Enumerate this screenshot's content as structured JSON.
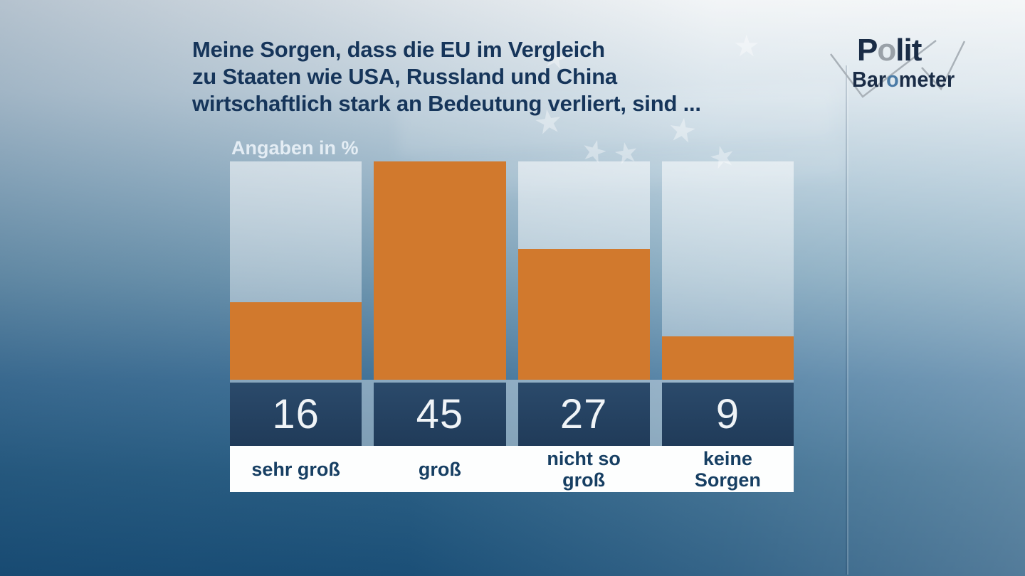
{
  "title": {
    "line1": "Meine Sorgen, dass die EU im Vergleich",
    "line2": "zu Staaten wie USA, Russland und China",
    "line3": "wirtschaftlich stark an Bedeutung verliert, sind ..."
  },
  "logo": {
    "polit": {
      "p1": "P",
      "o": "o",
      "p2": "lit"
    },
    "barometer": {
      "p1": "Bar",
      "o": "o",
      "p2": "meter"
    }
  },
  "chart_data": {
    "type": "bar",
    "title": "Meine Sorgen, dass die EU im Vergleich zu Staaten wie USA, Russland und China wirtschaftlich stark an Bedeutung verliert, sind ...",
    "unit_label": "Angaben in %",
    "categories": [
      "sehr groß",
      "groß",
      "nicht so groß",
      "keine Sorgen"
    ],
    "category_label_lines": [
      [
        "sehr groß"
      ],
      [
        "groß"
      ],
      [
        "nicht so",
        "groß"
      ],
      [
        "keine",
        "Sorgen"
      ]
    ],
    "values": [
      16,
      45,
      27,
      9
    ],
    "value_labels": [
      "16",
      "45",
      "27",
      "9"
    ],
    "ylim": [
      0,
      45
    ],
    "scale_max": 45,
    "grid": false,
    "legend": false,
    "bar_color": "#d1792d",
    "value_band_color": "#233f5e",
    "column_background": "rgba(255,255,255,0.45)"
  },
  "colors": {
    "background_top_right": "#f1f4f6",
    "background_bottom_left": "#1d527a",
    "title_navy": "#16355a",
    "bar_orange": "#d1792d",
    "value_band_navy": "#233f5e",
    "label_strip_white": "#fdfefe",
    "logo_navy": "#1a2c46",
    "logo_gray_o": "#9aa1a8",
    "logo_blue_o": "#4a7ba6"
  }
}
